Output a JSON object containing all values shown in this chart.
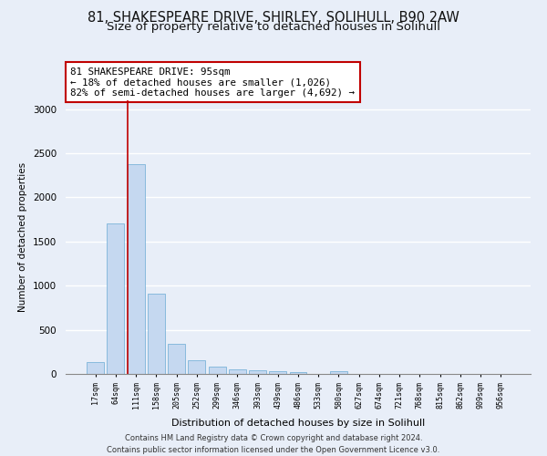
{
  "title_line1": "81, SHAKESPEARE DRIVE, SHIRLEY, SOLIHULL, B90 2AW",
  "title_line2": "Size of property relative to detached houses in Solihull",
  "xlabel": "Distribution of detached houses by size in Solihull",
  "ylabel": "Number of detached properties",
  "footer_line1": "Contains HM Land Registry data © Crown copyright and database right 2024.",
  "footer_line2": "Contains public sector information licensed under the Open Government Licence v3.0.",
  "bar_labels": [
    "17sqm",
    "64sqm",
    "111sqm",
    "158sqm",
    "205sqm",
    "252sqm",
    "299sqm",
    "346sqm",
    "393sqm",
    "439sqm",
    "486sqm",
    "533sqm",
    "580sqm",
    "627sqm",
    "674sqm",
    "721sqm",
    "768sqm",
    "815sqm",
    "862sqm",
    "909sqm",
    "956sqm"
  ],
  "bar_values": [
    130,
    1700,
    2380,
    910,
    340,
    155,
    80,
    50,
    40,
    30,
    25,
    0,
    30,
    0,
    0,
    0,
    0,
    0,
    0,
    0,
    0
  ],
  "bar_color": "#c5d8f0",
  "bar_edge_color": "#6aaad4",
  "annotation_text": "81 SHAKESPEARE DRIVE: 95sqm\n← 18% of detached houses are smaller (1,026)\n82% of semi-detached houses are larger (4,692) →",
  "annotation_box_color": "white",
  "annotation_edge_color": "#c00000",
  "vline_x": 1.57,
  "vline_color": "#c00000",
  "ylim": [
    0,
    3100
  ],
  "yticks": [
    0,
    500,
    1000,
    1500,
    2000,
    2500,
    3000
  ],
  "bg_color": "#e8eef8",
  "grid_color": "white",
  "title_fontsize": 10.5,
  "subtitle_fontsize": 9.5
}
